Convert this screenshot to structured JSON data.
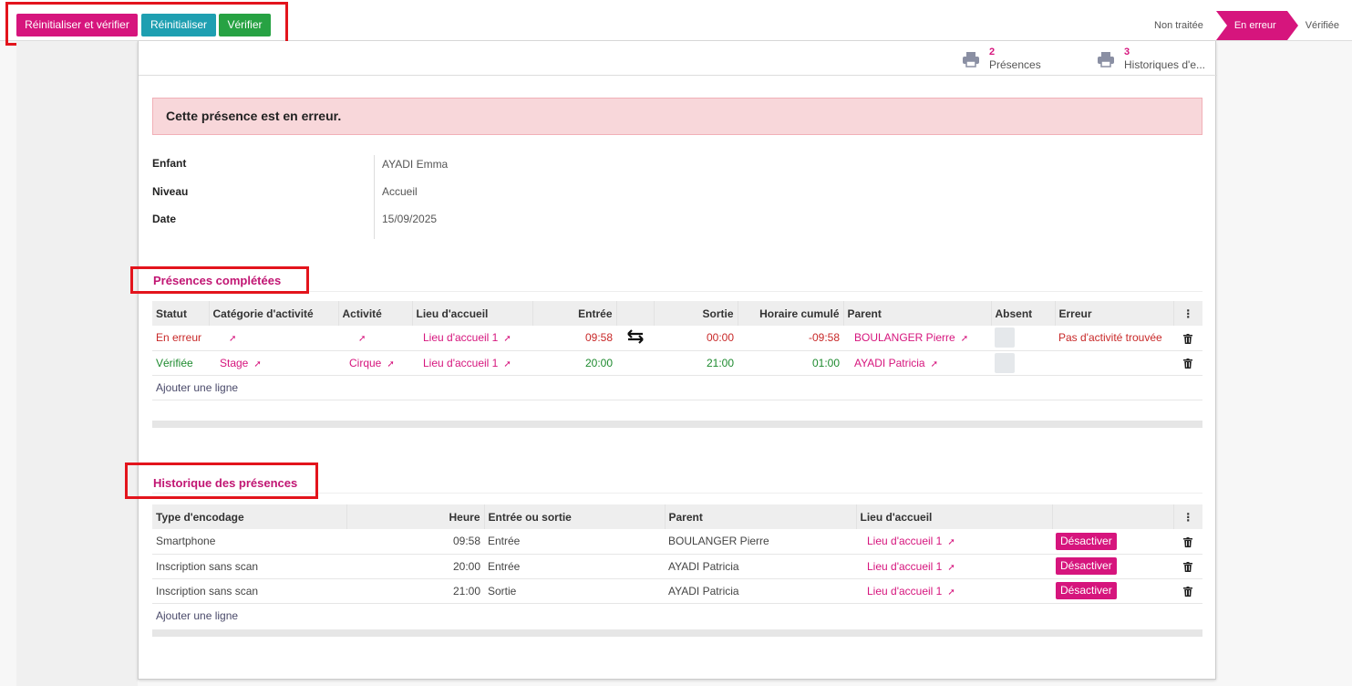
{
  "toolbar": {
    "reset_verify_label": "Réinitialiser et vérifier",
    "reset_label": "Réinitialiser",
    "verify_label": "Vérifier"
  },
  "statusbar": {
    "stages": [
      "Non traitée",
      "En erreur",
      "Vérifiée"
    ],
    "active": "En erreur"
  },
  "smart_buttons": [
    {
      "count": "2",
      "label": "Présences",
      "icon": "printer-icon"
    },
    {
      "count": "3",
      "label": "Historiques d'e...",
      "icon": "printer-icon"
    }
  ],
  "alert": "Cette présence est en erreur.",
  "fields": {
    "enfant_label": "Enfant",
    "enfant_value": "AYADI Emma",
    "niveau_label": "Niveau",
    "niveau_value": "Accueil",
    "date_label": "Date",
    "date_value": "15/09/2025"
  },
  "presences": {
    "title": "Présences complétées",
    "headers": [
      "Statut",
      "Catégorie d'activité",
      "Activité",
      "Lieu d'accueil",
      "Entrée",
      "",
      "Sortie",
      "Horaire cumulé",
      "Parent",
      "Absent",
      "Erreur"
    ],
    "rows": [
      {
        "statut": "En erreur",
        "categorie": "",
        "activite": "",
        "lieu": "Lieu d'accueil 1",
        "entree": "09:58",
        "sortie": "00:00",
        "horaire": "-09:58",
        "parent": "BOULANGER Pierre",
        "erreur": "Pas d'activité trouvée"
      },
      {
        "statut": "Vérifiée",
        "categorie": "Stage",
        "activite": "Cirque",
        "lieu": "Lieu d'accueil 1",
        "entree": "20:00",
        "sortie": "21:00",
        "horaire": "01:00",
        "parent": "AYADI Patricia",
        "erreur": ""
      }
    ],
    "add_line": "Ajouter une ligne"
  },
  "historique": {
    "title": "Historique des présences",
    "headers": [
      "Type d'encodage",
      "Heure",
      "Entrée ou sortie",
      "Parent",
      "Lieu d'accueil",
      ""
    ],
    "rows": [
      {
        "type": "Smartphone",
        "heure": "09:58",
        "es": "Entrée",
        "parent": "BOULANGER Pierre",
        "lieu": "Lieu d'accueil 1",
        "action": "Désactiver"
      },
      {
        "type": "Inscription sans scan",
        "heure": "20:00",
        "es": "Entrée",
        "parent": "AYADI Patricia",
        "lieu": "Lieu d'accueil 1",
        "action": "Désactiver"
      },
      {
        "type": "Inscription sans scan",
        "heure": "21:00",
        "es": "Sortie",
        "parent": "AYADI Patricia",
        "lieu": "Lieu d'accueil 1",
        "action": "Désactiver"
      }
    ],
    "add_line": "Ajouter une ligne"
  },
  "colors": {
    "primary": "#d6157d",
    "info": "#1e9fb1",
    "success": "#27a243",
    "error": "#c82828",
    "highlight_box": "#e3141c"
  }
}
